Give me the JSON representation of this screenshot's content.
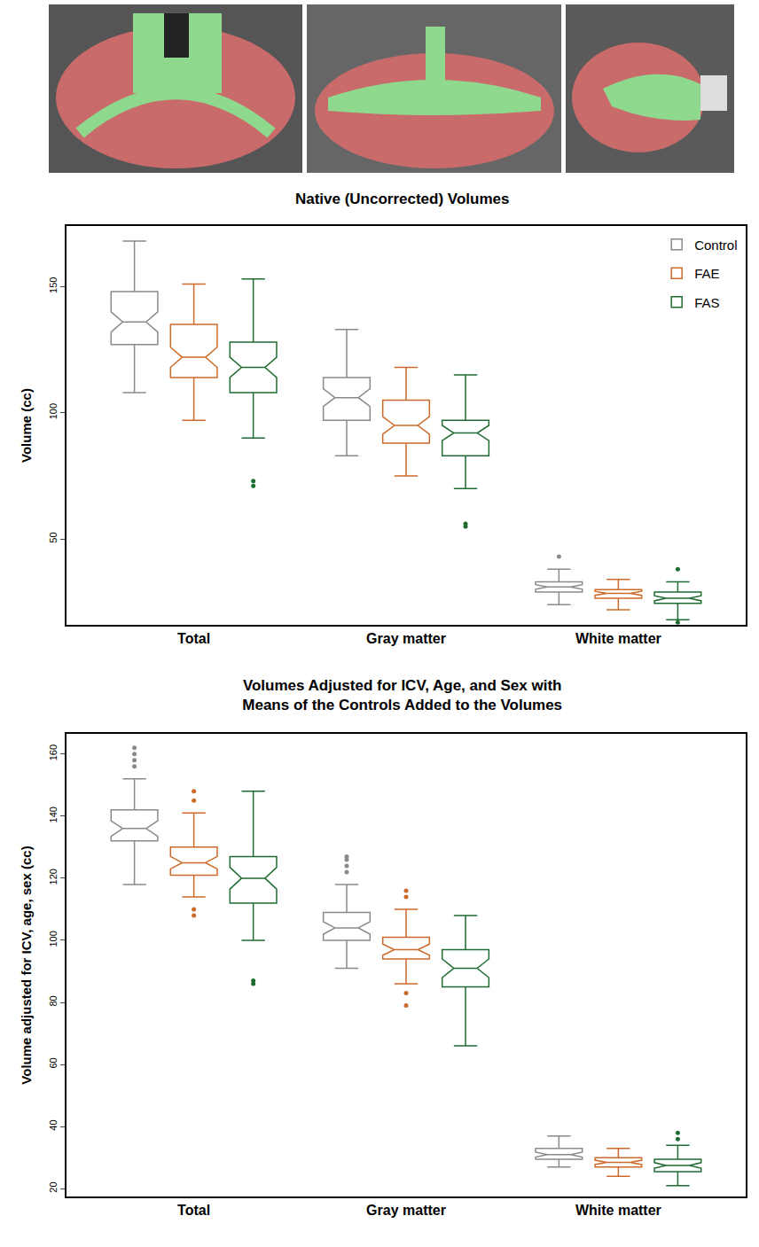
{
  "chart_data": [
    {
      "type": "box",
      "title": "Native (Uncorrected) Volumes",
      "y_label": "Volume (cc)",
      "categories": [
        "Total",
        "Gray matter",
        "White matter"
      ],
      "ylim": [
        16,
        174
      ],
      "yticks": [
        50,
        100,
        150
      ],
      "legend": "top right",
      "series": [
        {
          "name": "Control",
          "color": "#8a8a8a",
          "lowerfence": [
            108,
            83,
            24
          ],
          "q1": [
            127,
            97,
            29
          ],
          "median": [
            136,
            106,
            31
          ],
          "q3": [
            148,
            114,
            33
          ],
          "upperfence": [
            168,
            133,
            38
          ],
          "notchspan": [
            4,
            3.5,
            0.9
          ],
          "outliers": [
            [],
            [],
            [
              43
            ]
          ]
        },
        {
          "name": "FAE",
          "color": "#cc6a2a",
          "lowerfence": [
            97,
            75,
            22
          ],
          "q1": [
            114,
            88,
            26.5
          ],
          "median": [
            122,
            95,
            28.5
          ],
          "q3": [
            135,
            105,
            30
          ],
          "upperfence": [
            151,
            118,
            34
          ],
          "notchspan": [
            4,
            3.5,
            0.8
          ],
          "outliers": [
            [],
            [],
            []
          ]
        },
        {
          "name": "FAS",
          "color": "#1f6b32",
          "lowerfence": [
            90,
            70,
            18
          ],
          "q1": [
            108,
            83,
            24.5
          ],
          "median": [
            118,
            92,
            26.5
          ],
          "q3": [
            128,
            97,
            29
          ],
          "upperfence": [
            153,
            115,
            33
          ],
          "notchspan": [
            4,
            3,
            1
          ],
          "outliers": [
            [
              71,
              73
            ],
            [
              55,
              56
            ],
            [
              38,
              17
            ]
          ]
        }
      ]
    },
    {
      "type": "box",
      "title": "Volumes Adjusted for ICV, Age, and Sex with\nMeans of the Controls Added to the Volumes",
      "y_label": "Volume adjusted for ICV, age, sex (cc)",
      "categories": [
        "Total",
        "Gray matter",
        "White matter"
      ],
      "ylim": [
        17.5,
        166.5
      ],
      "yticks": [
        20,
        40,
        60,
        80,
        100,
        120,
        140,
        160
      ],
      "series": [
        {
          "name": "Control",
          "color": "#8a8a8a",
          "lowerfence": [
            118,
            91,
            27
          ],
          "q1": [
            132,
            100,
            29.5
          ],
          "median": [
            136,
            104,
            31
          ],
          "q3": [
            142,
            109,
            33
          ],
          "upperfence": [
            152,
            118,
            37
          ],
          "notchspan": [
            2.5,
            2,
            0.8
          ],
          "outliers": [
            [
              156,
              158,
              160,
              162
            ],
            [
              122,
              124,
              126,
              127
            ],
            []
          ]
        },
        {
          "name": "FAE",
          "color": "#cc6a2a",
          "lowerfence": [
            114,
            86,
            24
          ],
          "q1": [
            121,
            94,
            27
          ],
          "median": [
            125,
            97,
            28.5
          ],
          "q3": [
            130,
            101,
            30
          ],
          "upperfence": [
            141,
            110,
            33
          ],
          "notchspan": [
            2,
            1.8,
            0.7
          ],
          "outliers": [
            [
              108,
              110,
              145,
              148
            ],
            [
              79,
              83,
              114,
              116
            ],
            []
          ]
        },
        {
          "name": "FAS",
          "color": "#1f6b32",
          "lowerfence": [
            100,
            66,
            21
          ],
          "q1": [
            112,
            85,
            25.5
          ],
          "median": [
            120,
            91,
            27.5
          ],
          "q3": [
            127,
            97,
            29.5
          ],
          "upperfence": [
            148,
            108,
            34
          ],
          "notchspan": [
            3.5,
            3,
            0.9
          ],
          "outliers": [
            [
              86,
              87
            ],
            [],
            [
              36,
              38
            ]
          ]
        }
      ]
    }
  ]
}
